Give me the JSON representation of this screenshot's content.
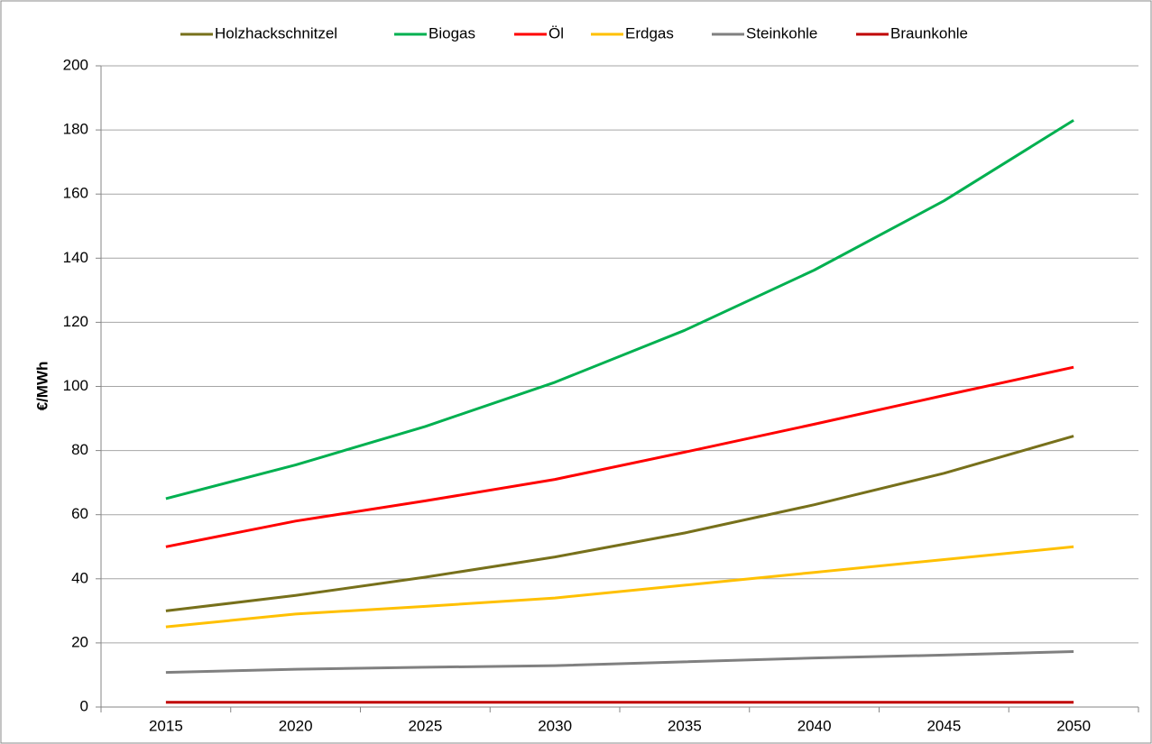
{
  "chart_data": {
    "type": "line",
    "ylabel": "€/MWh",
    "categories": [
      "2015",
      "2020",
      "2025",
      "2030",
      "2035",
      "2040",
      "2045",
      "2050"
    ],
    "series": [
      {
        "name": "Holzhackschnitzel",
        "color": "#77701b",
        "values": [
          30,
          34.8,
          40.5,
          46.8,
          54.3,
          63.1,
          72.9,
          84.5
        ]
      },
      {
        "name": "Biogas",
        "color": "#00b050",
        "values": [
          65,
          75.5,
          87.5,
          101.3,
          117.5,
          136.3,
          157.9,
          183
        ]
      },
      {
        "name": "Öl",
        "color": "#ff0000",
        "values": [
          50,
          58,
          64.3,
          71,
          79.5,
          88.2,
          97.2,
          106
        ]
      },
      {
        "name": "Erdgas",
        "color": "#ffc000",
        "values": [
          25,
          29,
          31.4,
          34,
          38,
          42,
          46,
          50
        ]
      },
      {
        "name": "Steinkohle",
        "color": "#808080",
        "values": [
          10.8,
          11.8,
          12.4,
          12.9,
          14.1,
          15.3,
          16.2,
          17.3
        ]
      },
      {
        "name": "Braunkohle",
        "color": "#c00000",
        "values": [
          1.5,
          1.5,
          1.5,
          1.5,
          1.5,
          1.5,
          1.5,
          1.5
        ]
      }
    ],
    "ylim": [
      0,
      200
    ],
    "yticks": [
      0,
      20,
      40,
      60,
      80,
      100,
      120,
      140,
      160,
      180,
      200
    ],
    "grid": true,
    "legend": "top"
  }
}
